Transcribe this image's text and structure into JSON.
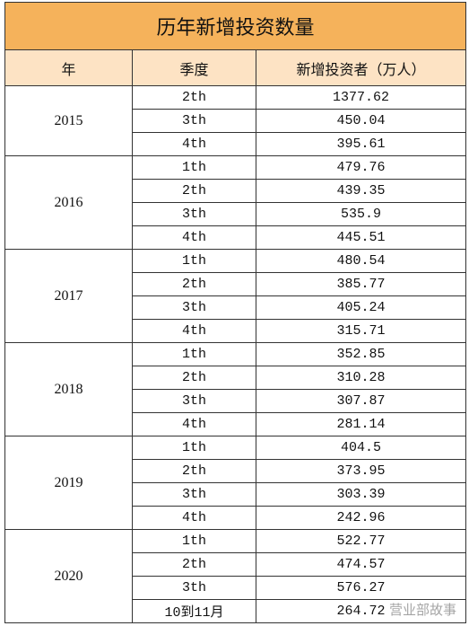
{
  "title": "历年新增投资数量",
  "header": [
    "年",
    "季度",
    "新增投资者（万人）"
  ],
  "groups": [
    {
      "year": "2015",
      "rows": [
        [
          "2th",
          1377.62
        ],
        [
          "3th",
          450.04
        ],
        [
          "4th",
          395.61
        ]
      ]
    },
    {
      "year": "2016",
      "rows": [
        [
          "1th",
          479.76
        ],
        [
          "2th",
          439.35
        ],
        [
          "3th",
          535.9
        ],
        [
          "4th",
          445.51
        ]
      ]
    },
    {
      "year": "2017",
      "rows": [
        [
          "1th",
          480.54
        ],
        [
          "2th",
          385.77
        ],
        [
          "3th",
          405.24
        ],
        [
          "4th",
          315.71
        ]
      ]
    },
    {
      "year": "2018",
      "rows": [
        [
          "1th",
          352.85
        ],
        [
          "2th",
          310.28
        ],
        [
          "3th",
          307.87
        ],
        [
          "4th",
          281.14
        ]
      ]
    },
    {
      "year": "2019",
      "rows": [
        [
          "1th",
          404.5
        ],
        [
          "2th",
          373.95
        ],
        [
          "3th",
          303.39
        ],
        [
          "4th",
          242.96
        ]
      ]
    },
    {
      "year": "2020",
      "rows": [
        [
          "1th",
          522.77
        ],
        [
          "2th",
          474.57
        ],
        [
          "3th",
          576.27
        ],
        [
          "10到11月",
          264.72
        ]
      ]
    }
  ],
  "watermark": "营业部故事"
}
